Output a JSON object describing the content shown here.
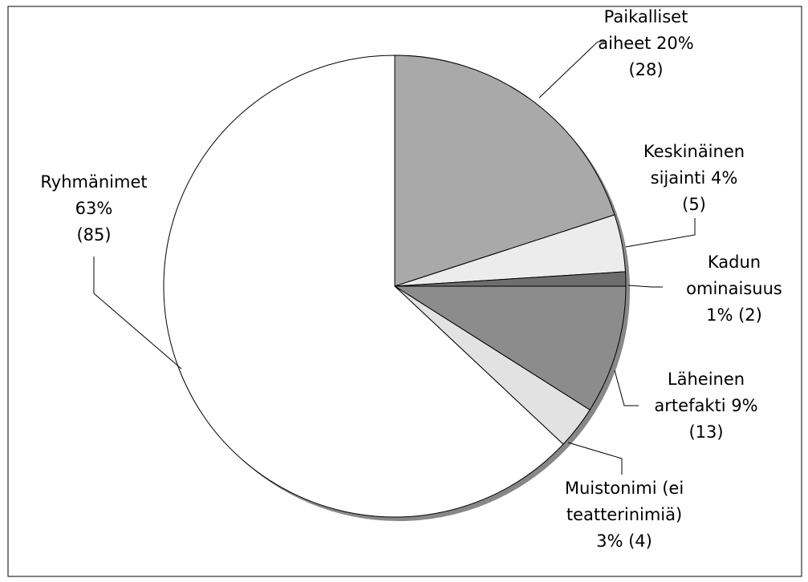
{
  "chart_data": {
    "type": "pie",
    "labels": [
      [
        "Paikalliset",
        "aiheet 20%",
        "(28)"
      ],
      [
        "Keskinäinen",
        "sijainti 4%",
        "(5)"
      ],
      [
        "Kadun",
        "ominaisuus",
        "1% (2)"
      ],
      [
        "Läheinen",
        "artefakti 9%",
        "(13)"
      ],
      [
        "Muistonimi (ei",
        "teatterinimiä)",
        "3% (4)"
      ],
      [
        "Ryhmänimet",
        "63%",
        "(85)"
      ]
    ],
    "values": [
      20,
      4,
      1,
      9,
      3,
      63
    ],
    "colors": [
      "#a9a9a9",
      "#ececec",
      "#6e6e6e",
      "#8c8c8c",
      "#e2e2e2",
      "#ffffff"
    ]
  }
}
